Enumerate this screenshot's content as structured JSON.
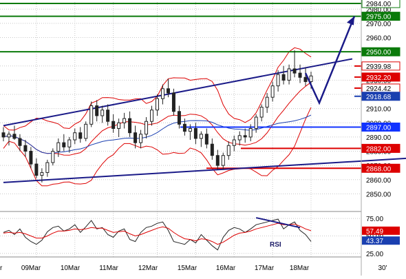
{
  "chart_data": [
    {
      "type": "candlestick",
      "ylim": [
        2840,
        2985
      ],
      "y_ticks": [
        2850,
        2860,
        2870,
        2880,
        2890,
        2900,
        2910,
        2920,
        2930,
        2940,
        2950,
        2960,
        2970,
        2980
      ],
      "tick_labels": [
        "2850.00",
        "2860.00",
        "2870.00",
        "2880.00",
        "2890.00",
        "2900.00",
        "2910.00",
        "2920.00",
        "2930.00",
        "2940.00",
        "2950.00",
        "2960.00",
        "2970.00",
        "2980.00"
      ],
      "grid": true,
      "x_labels": [
        "r",
        "09Mar",
        "10Mar",
        "11Mar",
        "12Mar",
        "15Mar",
        "16Mar",
        "17Mar",
        "18Mar",
        "30'"
      ],
      "ohlc_estimated": [
        [
          2893,
          2897,
          2887,
          2890
        ],
        [
          2890,
          2894,
          2884,
          2892
        ],
        [
          2892,
          2898,
          2888,
          2889
        ],
        [
          2889,
          2892,
          2880,
          2884
        ],
        [
          2884,
          2888,
          2876,
          2880
        ],
        [
          2880,
          2883,
          2868,
          2871
        ],
        [
          2871,
          2875,
          2861,
          2863
        ],
        [
          2863,
          2868,
          2858,
          2865
        ],
        [
          2865,
          2874,
          2862,
          2872
        ],
        [
          2872,
          2882,
          2870,
          2880
        ],
        [
          2880,
          2889,
          2876,
          2886
        ],
        [
          2886,
          2892,
          2880,
          2883
        ],
        [
          2883,
          2890,
          2879,
          2888
        ],
        [
          2888,
          2896,
          2885,
          2893
        ],
        [
          2893,
          2897,
          2886,
          2889
        ],
        [
          2889,
          2901,
          2887,
          2899
        ],
        [
          2899,
          2915,
          2897,
          2912
        ],
        [
          2912,
          2916,
          2901,
          2905
        ],
        [
          2905,
          2912,
          2900,
          2909
        ],
        [
          2909,
          2913,
          2898,
          2901
        ],
        [
          2901,
          2906,
          2893,
          2896
        ],
        [
          2896,
          2903,
          2890,
          2900
        ],
        [
          2900,
          2907,
          2896,
          2903
        ],
        [
          2903,
          2908,
          2890,
          2893
        ],
        [
          2893,
          2898,
          2882,
          2886
        ],
        [
          2886,
          2895,
          2882,
          2892
        ],
        [
          2892,
          2904,
          2889,
          2901
        ],
        [
          2901,
          2912,
          2898,
          2909
        ],
        [
          2909,
          2920,
          2905,
          2917
        ],
        [
          2917,
          2927,
          2913,
          2924
        ],
        [
          2924,
          2931,
          2918,
          2921
        ],
        [
          2921,
          2924,
          2905,
          2908
        ],
        [
          2908,
          2912,
          2896,
          2899
        ],
        [
          2899,
          2903,
          2891,
          2894
        ],
        [
          2894,
          2899,
          2888,
          2896
        ],
        [
          2896,
          2900,
          2885,
          2889
        ],
        [
          2889,
          2894,
          2883,
          2892
        ],
        [
          2892,
          2896,
          2882,
          2885
        ],
        [
          2885,
          2889,
          2874,
          2877
        ],
        [
          2877,
          2881,
          2867,
          2870
        ],
        [
          2870,
          2879,
          2867,
          2877
        ],
        [
          2877,
          2887,
          2874,
          2884
        ],
        [
          2884,
          2891,
          2880,
          2888
        ],
        [
          2888,
          2894,
          2884,
          2891
        ],
        [
          2891,
          2896,
          2886,
          2890
        ],
        [
          2890,
          2899,
          2887,
          2896
        ],
        [
          2896,
          2906,
          2893,
          2904
        ],
        [
          2904,
          2913,
          2901,
          2911
        ],
        [
          2911,
          2921,
          2907,
          2918
        ],
        [
          2918,
          2929,
          2915,
          2926
        ],
        [
          2926,
          2937,
          2922,
          2934
        ],
        [
          2934,
          2940,
          2927,
          2930
        ],
        [
          2930,
          2941,
          2927,
          2938
        ],
        [
          2938,
          2951,
          2932,
          2935
        ],
        [
          2935,
          2941,
          2928,
          2932
        ],
        [
          2932,
          2939,
          2926,
          2929
        ],
        [
          2929,
          2936,
          2924,
          2933
        ]
      ],
      "overlays": [
        "bollinger-bands",
        "moving-average"
      ],
      "levels": [
        {
          "label": "2984.00",
          "value": 2984,
          "color": "#0a7a0a",
          "label_bg": "#ffffff",
          "label_fg": "#000000"
        },
        {
          "label": "2975.00",
          "value": 2975,
          "color": "#0a7a0a",
          "label_bg": "#0a7a0a",
          "label_fg": "#ffffff"
        },
        {
          "label": "2950.00",
          "value": 2950,
          "color": "#0a7a0a",
          "label_bg": "#0a7a0a",
          "label_fg": "#ffffff"
        },
        {
          "label": "2939.98",
          "value": 2939.98,
          "color": "#dd0000",
          "label_bg": "#ffffff",
          "label_fg": "#000000"
        },
        {
          "label": "2932.20",
          "value": 2932.2,
          "color": "#dd0000",
          "label_bg": "#dd0000",
          "label_fg": "#ffffff"
        },
        {
          "label": "2924.42",
          "value": 2924.42,
          "color": "#dd0000",
          "label_bg": "#ffffff",
          "label_fg": "#000000"
        },
        {
          "label": "2918.68",
          "value": 2918.68,
          "color": "#1a3fb0",
          "label_bg": "#1a3fb0",
          "label_fg": "#ffffff"
        },
        {
          "label": "2897.00",
          "value": 2897,
          "color": "#1133ff",
          "label_bg": "#1133ff",
          "label_fg": "#ffffff"
        },
        {
          "label": "2882.00",
          "value": 2882,
          "color": "#dd0000",
          "label_bg": "#dd0000",
          "label_fg": "#ffffff"
        },
        {
          "label": "2868.00",
          "value": 2868,
          "color": "#dd0000",
          "label_bg": "#dd0000",
          "label_fg": "#ffffff"
        }
      ],
      "trendlines": [
        {
          "from_bar": 0,
          "from": 2898,
          "to_bar": 60,
          "to": 2945
        },
        {
          "from_bar": 0,
          "from": 2858,
          "to_bar": 70,
          "to": 2875
        }
      ],
      "forecast_arrow": {
        "points": [
          [
            55,
            2935
          ],
          [
            60,
            2914
          ],
          [
            67,
            2975
          ]
        ]
      },
      "colors": {
        "candle": "#222222",
        "bands": "#dd0000",
        "ma": "#1a3fb0",
        "trend": "#1a1a88",
        "grid": "#c8c8c8"
      }
    },
    {
      "type": "line",
      "title": "RSI",
      "ylim": [
        20,
        80
      ],
      "y_ticks": [
        25,
        50,
        75
      ],
      "tick_labels": [
        "25.00",
        "50.00",
        "75.00"
      ],
      "grid": true,
      "series": [
        {
          "name": "",
          "color": "#222222",
          "values": [
            55,
            58,
            52,
            60,
            48,
            42,
            38,
            44,
            56,
            62,
            64,
            57,
            60,
            66,
            55,
            63,
            72,
            60,
            62,
            52,
            48,
            57,
            60,
            45,
            42,
            55,
            62,
            64,
            68,
            70,
            58,
            42,
            40,
            38,
            45,
            40,
            52,
            44,
            36,
            30,
            48,
            58,
            62,
            60,
            55,
            60,
            66,
            68,
            70,
            72,
            74,
            60,
            66,
            70,
            58,
            52,
            42
          ]
        },
        {
          "name": "",
          "color": "#dd0000",
          "values": [
            54,
            55,
            54,
            55,
            53,
            50,
            47,
            47,
            50,
            54,
            57,
            57,
            58,
            60,
            59,
            60,
            62,
            61,
            61,
            58,
            55,
            56,
            57,
            53,
            50,
            52,
            55,
            58,
            61,
            63,
            61,
            55,
            50,
            46,
            45,
            43,
            46,
            45,
            42,
            38,
            41,
            46,
            51,
            54,
            55,
            57,
            60,
            62,
            64,
            66,
            68,
            66,
            66,
            67,
            64,
            60,
            57.49
          ]
        }
      ],
      "levels": [
        {
          "label": "57.49",
          "value": 57.49,
          "color": "#dd0000",
          "label_bg": "#dd0000",
          "label_fg": "#ffffff"
        },
        {
          "label": "43.37",
          "value": 43.37,
          "color": "#1a3fb0",
          "label_bg": "#1a3fb0",
          "label_fg": "#ffffff"
        }
      ],
      "trendlines": [
        {
          "from_bar": 46,
          "from": 76,
          "to_bar": 54,
          "to": 62
        }
      ]
    }
  ]
}
